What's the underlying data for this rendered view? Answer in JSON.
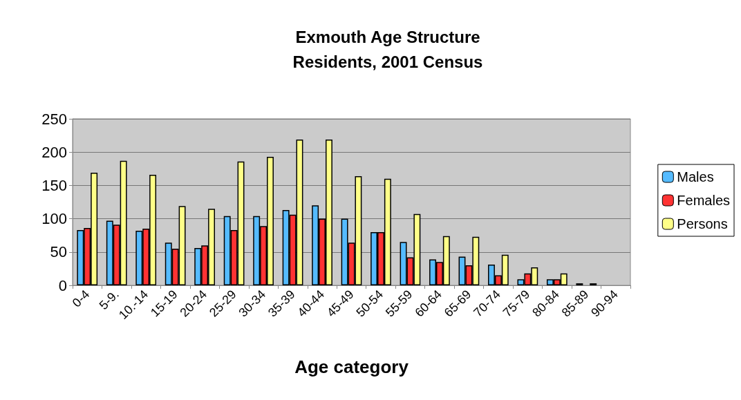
{
  "chart_data": {
    "type": "bar",
    "title": "Exmouth Age Structure\nResidents, 2001 Census",
    "xlabel": "Age category",
    "categories": [
      "0-4",
      "5-9.",
      "10.-14",
      "15-19",
      "20-24",
      "25-29",
      "30-34",
      "35-39",
      "40-44",
      "45-49",
      "50-54",
      "55-59",
      "60-64",
      "65-69",
      "70-74",
      "75-79",
      "80-84",
      "85-89",
      "90-94"
    ],
    "series": [
      {
        "name": "Males",
        "color": "#55bbff",
        "values": [
          83,
          97,
          82,
          64,
          56,
          104,
          104,
          113,
          120,
          100,
          80,
          65,
          39,
          43,
          31,
          9,
          9,
          3,
          null
        ]
      },
      {
        "name": "Females",
        "color": "#ff3333",
        "values": [
          86,
          91,
          85,
          55,
          60,
          83,
          89,
          106,
          100,
          64,
          80,
          42,
          35,
          30,
          15,
          18,
          9,
          null,
          null
        ]
      },
      {
        "name": "Persons",
        "color": "#ffff88",
        "values": [
          169,
          187,
          166,
          119,
          115,
          186,
          193,
          219,
          219,
          164,
          160,
          107,
          74,
          73,
          46,
          27,
          18,
          3,
          null
        ]
      }
    ],
    "ylim": [
      0,
      250
    ],
    "yticks": [
      0,
      50,
      100,
      150,
      200,
      250
    ],
    "grid": "y",
    "legend": "right"
  }
}
